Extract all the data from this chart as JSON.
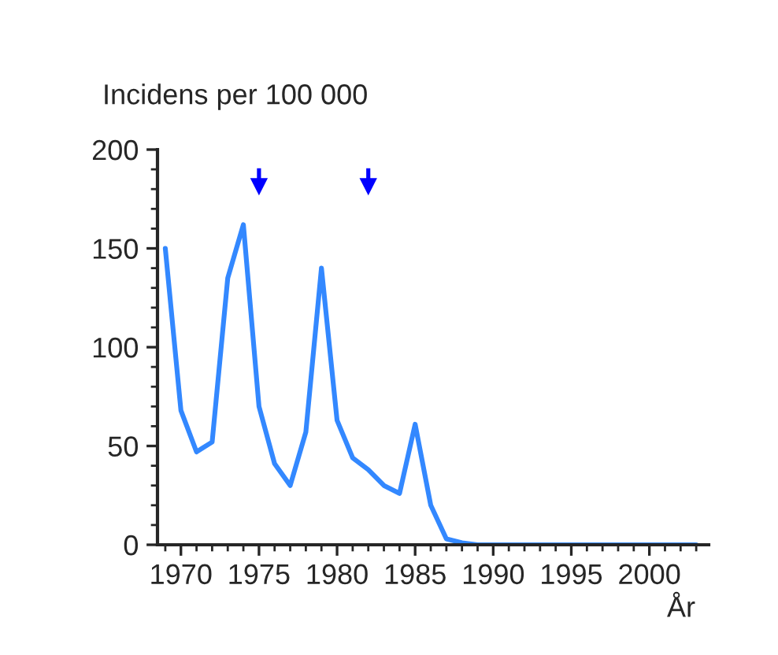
{
  "chart_data": {
    "type": "line",
    "ylabel": "Incidens per 100 000",
    "xlabel": "År",
    "x": [
      1969,
      1970,
      1971,
      1972,
      1973,
      1974,
      1975,
      1976,
      1977,
      1978,
      1979,
      1980,
      1981,
      1982,
      1983,
      1984,
      1985,
      1986,
      1987,
      1988,
      1989,
      1990,
      1991,
      1992,
      1993,
      1994,
      1995,
      1996,
      1997,
      1998,
      1999,
      2000,
      2001,
      2002,
      2003
    ],
    "series": [
      {
        "color": "#3388ff",
        "values": [
          150,
          68,
          47,
          52,
          135,
          162,
          70,
          41,
          30,
          57,
          140,
          63,
          44,
          38,
          30,
          26,
          61,
          20,
          3,
          1,
          0,
          0,
          0,
          0,
          0,
          0,
          0,
          0,
          0,
          0,
          0,
          0,
          0,
          0,
          0
        ]
      }
    ],
    "xlim": [
      1968.5,
      2003.8
    ],
    "xticks": [
      1970,
      1975,
      1980,
      1985,
      1990,
      1995,
      2000
    ],
    "ylim": [
      0,
      200
    ],
    "yticks": [
      0,
      50,
      100,
      150,
      200
    ],
    "grid": false,
    "legend": false,
    "marker": "none",
    "line_style": "solid"
  }
}
